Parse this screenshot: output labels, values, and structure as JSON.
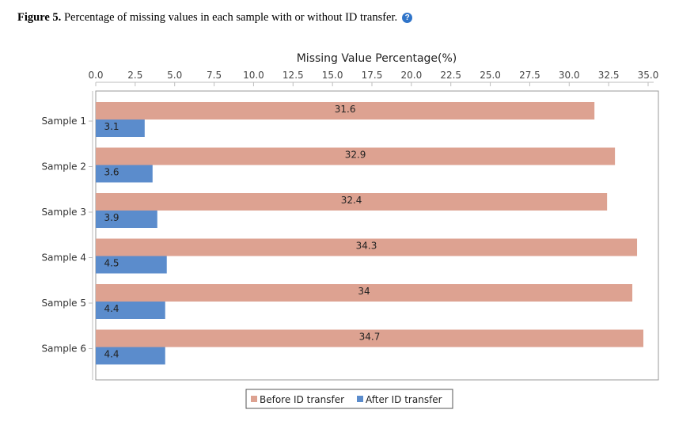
{
  "caption": {
    "label": "Figure 5.",
    "text": " Percentage of missing values in each sample with or without ID transfer.",
    "help_icon": "question-circle-icon"
  },
  "colors": {
    "before": "#dda291",
    "after": "#5b8ccc",
    "frame": "#9a9a9a"
  },
  "chart_data": {
    "type": "bar",
    "orientation": "horizontal",
    "title": "",
    "xlabel": "Missing Value Percentage(%)",
    "ylabel": "",
    "xlim": [
      0,
      35
    ],
    "x_ticks": [
      "0.0",
      "2.5",
      "5.0",
      "7.5",
      "10.0",
      "12.5",
      "15.0",
      "17.5",
      "20.0",
      "22.5",
      "25.0",
      "27.5",
      "30.0",
      "32.5",
      "35.0"
    ],
    "x_axis_position": "top",
    "grid": false,
    "legend_position": "bottom-center",
    "categories": [
      "Sample 1",
      "Sample 2",
      "Sample 3",
      "Sample 4",
      "Sample 5",
      "Sample 6"
    ],
    "series": [
      {
        "name": "Before ID transfer",
        "values": [
          31.6,
          32.9,
          32.4,
          34.3,
          34,
          34.7
        ]
      },
      {
        "name": "After ID transfer",
        "values": [
          3.1,
          3.6,
          3.9,
          4.5,
          4.4,
          4.4
        ]
      }
    ]
  }
}
